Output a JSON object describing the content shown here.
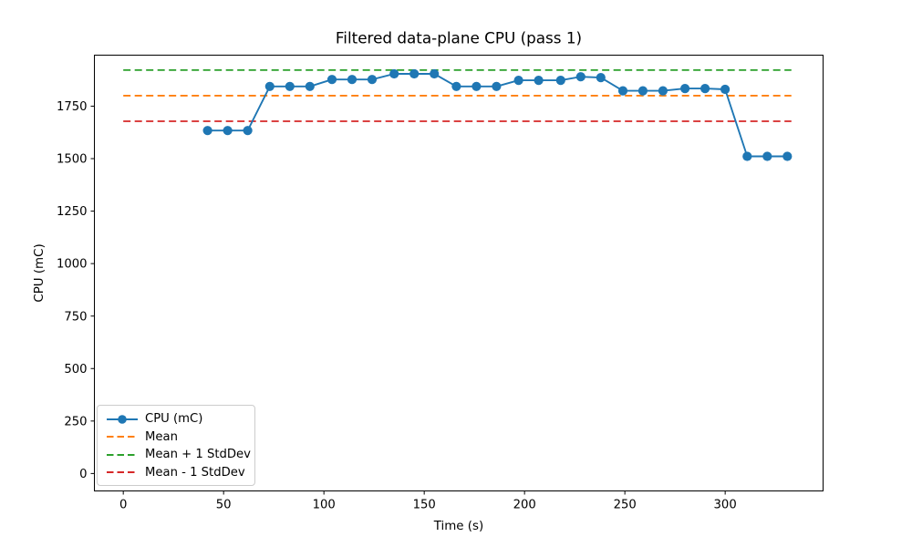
{
  "chart_data": {
    "type": "line",
    "title": "Filtered data-plane CPU (pass 1)",
    "xlabel": "Time (s)",
    "ylabel": "CPU (mC)",
    "x": [
      42,
      52,
      62,
      73,
      83,
      93,
      104,
      114,
      124,
      135,
      145,
      155,
      166,
      176,
      186,
      197,
      207,
      218,
      228,
      238,
      249,
      259,
      269,
      280,
      290,
      300,
      311,
      321,
      331
    ],
    "series": [
      {
        "name": "CPU (mC)",
        "color": "#1f77b4",
        "style": "solid-with-markers",
        "values": [
          1634,
          1634,
          1634,
          1844,
          1844,
          1844,
          1877,
          1877,
          1877,
          1904,
          1904,
          1904,
          1844,
          1844,
          1844,
          1873,
          1873,
          1873,
          1890,
          1886,
          1823,
          1823,
          1823,
          1834,
          1834,
          1830,
          1511,
          1511,
          1511
        ]
      }
    ],
    "reference_lines": [
      {
        "name": "mean-line",
        "label": "Mean",
        "value": 1800,
        "color": "#ff7f0e",
        "style": "dashed",
        "x_start": 0,
        "x_end": 333
      },
      {
        "name": "mean-plus-1sd-line",
        "label": "Mean + 1 StdDev",
        "value": 1922,
        "color": "#2ca02c",
        "style": "dashed",
        "x_start": 0,
        "x_end": 333
      },
      {
        "name": "mean-minus-1sd-line",
        "label": "Mean - 1 StdDev",
        "value": 1678,
        "color": "#d62728",
        "style": "dashed",
        "x_start": 0,
        "x_end": 333
      }
    ],
    "legend": {
      "position": "lower left",
      "items": [
        {
          "label": "CPU (mC)",
          "color": "#1f77b4",
          "style": "line-marker"
        },
        {
          "label": "Mean",
          "color": "#ff7f0e",
          "style": "dashed"
        },
        {
          "label": "Mean + 1 StdDev",
          "color": "#2ca02c",
          "style": "dashed"
        },
        {
          "label": "Mean - 1 StdDev",
          "color": "#d62728",
          "style": "dashed"
        }
      ]
    },
    "x_ticks": [
      0,
      50,
      100,
      150,
      200,
      250,
      300
    ],
    "y_ticks": [
      0,
      250,
      500,
      750,
      1000,
      1250,
      1500,
      1750
    ],
    "xlim": [
      -14.4,
      348.8
    ],
    "ylim": [
      -83,
      1993
    ],
    "grid": false
  }
}
